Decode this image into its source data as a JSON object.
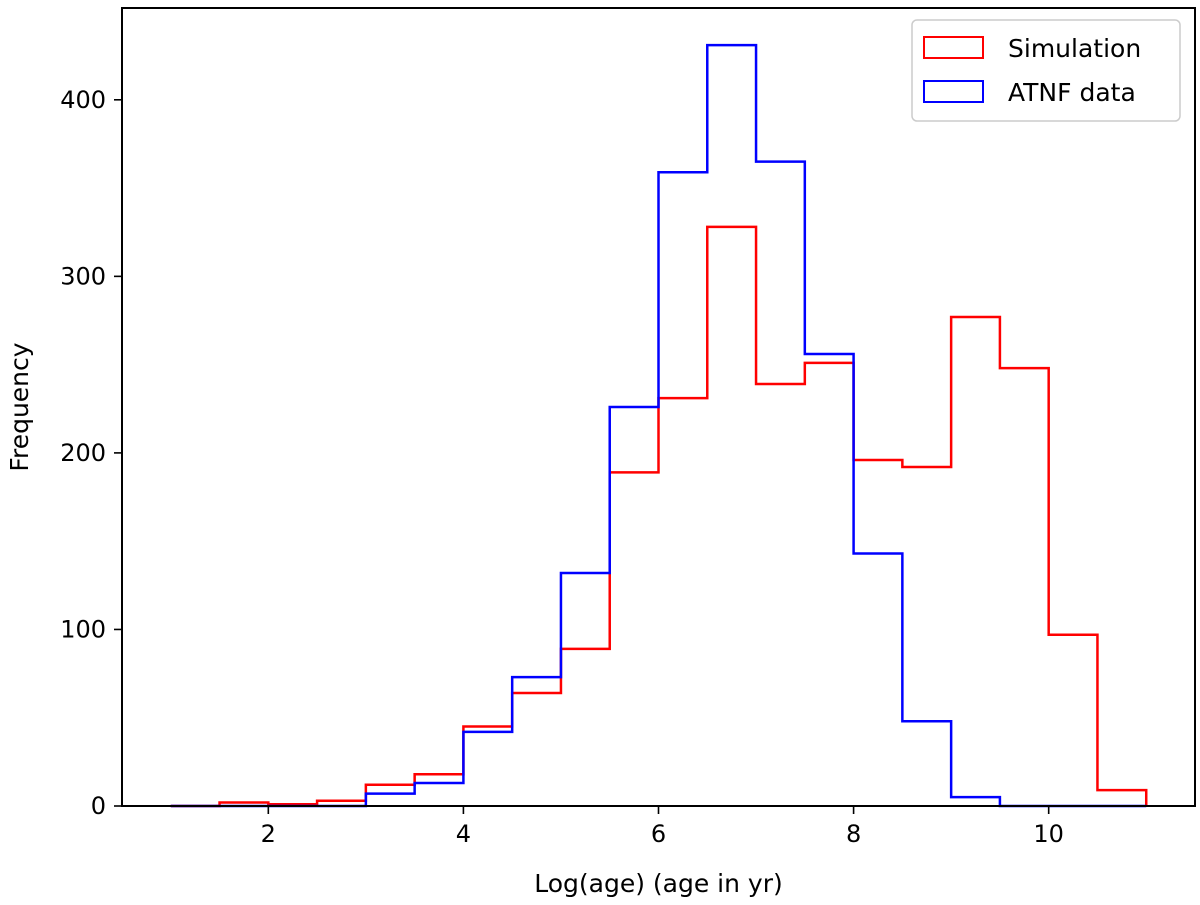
{
  "chart_data": {
    "type": "histogram",
    "xlabel": "Log(age) (age in yr)",
    "ylabel": "Frequency",
    "xlim": [
      0.5,
      11.5
    ],
    "ylim": [
      0,
      452
    ],
    "xticks": [
      2,
      4,
      6,
      8,
      10
    ],
    "yticks": [
      0,
      100,
      200,
      300,
      400
    ],
    "bin_edges": [
      1.0,
      1.5,
      2.0,
      2.5,
      3.0,
      3.5,
      4.0,
      4.5,
      5.0,
      5.5,
      6.0,
      6.5,
      7.0,
      7.5,
      8.0,
      8.5,
      9.0,
      9.5,
      10.0,
      10.5,
      11.0
    ],
    "grid": false,
    "legend_position": "top-right",
    "series": [
      {
        "name": "Simulation",
        "color": "#ff0000",
        "values": [
          0,
          2,
          1,
          3,
          12,
          18,
          45,
          64,
          89,
          189,
          231,
          328,
          239,
          251,
          196,
          192,
          277,
          248,
          97,
          9
        ]
      },
      {
        "name": "ATNF data",
        "color": "#0000ff",
        "values": [
          0,
          0,
          0,
          0,
          7,
          13,
          42,
          73,
          132,
          226,
          359,
          431,
          365,
          256,
          143,
          48,
          5,
          0,
          0,
          0
        ]
      }
    ]
  }
}
